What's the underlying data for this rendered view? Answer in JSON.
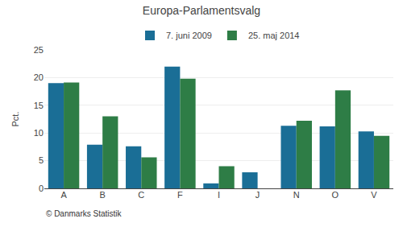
{
  "chart_data": {
    "type": "bar",
    "title": "Europa-Parlamentsvalg",
    "categories": [
      "A",
      "B",
      "C",
      "F",
      "I",
      "J",
      "N",
      "O",
      "V"
    ],
    "series": [
      {
        "name": "7. juni 2009",
        "color": "#1a6e96",
        "values": [
          19.0,
          7.9,
          7.6,
          22.0,
          0.9,
          2.9,
          11.3,
          11.2,
          10.3
        ]
      },
      {
        "name": "25. maj 2014",
        "color": "#2e7d46",
        "values": [
          19.1,
          13.0,
          5.6,
          19.8,
          4.0,
          0.0,
          12.2,
          17.7,
          9.5
        ]
      }
    ],
    "ylabel": "Pct.",
    "ylim": [
      0,
      25
    ],
    "yticks": [
      0,
      5,
      10,
      15,
      20,
      25
    ],
    "grid": true,
    "legend": "top",
    "annotations": [
      "© Danmarks Statistik"
    ]
  }
}
